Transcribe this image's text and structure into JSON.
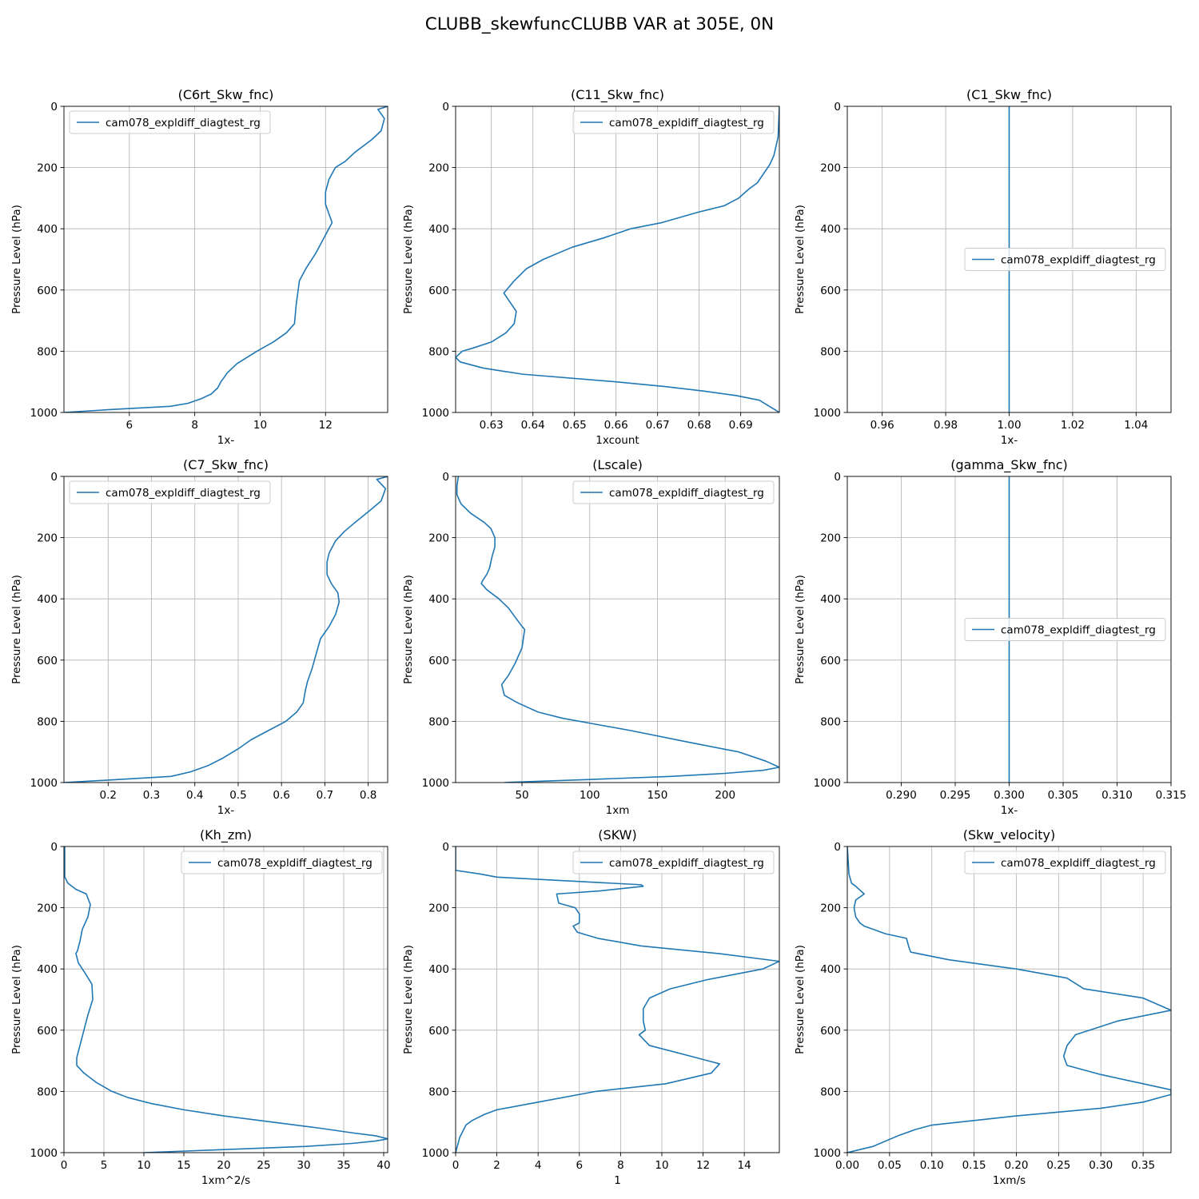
{
  "figure_title": "CLUBB_skewfuncCLUBB VAR at 305E, 0N",
  "chart_data": [
    {
      "type": "line",
      "title": "(C6rt_Skw_fnc)",
      "xlabel": "1x-",
      "ylabel": "Pressure Level (hPa)",
      "xlim": [
        4.0,
        13.9
      ],
      "ylim": [
        1000,
        0
      ],
      "xticks": [
        6,
        8,
        10,
        12
      ],
      "xtick_labels": [
        "6",
        "8",
        "10",
        "12"
      ],
      "yticks": [
        0,
        200,
        400,
        600,
        800,
        1000
      ],
      "ytick_labels": [
        "0",
        "200",
        "400",
        "600",
        "800",
        "1000"
      ],
      "legend": "upper left",
      "series": [
        {
          "name": "cam078_expldiff_diagtest_rg",
          "color": "#1f77b4",
          "x": [
            13.9,
            13.6,
            13.8,
            13.7,
            13.4,
            12.9,
            12.6,
            12.3,
            12.1,
            12.0,
            12.0,
            12.1,
            12.2,
            12.0,
            11.7,
            11.4,
            11.2,
            11.1,
            11.05,
            10.8,
            10.4,
            9.9,
            9.3,
            9.0,
            8.8,
            8.7,
            8.5,
            8.2,
            7.8,
            7.25,
            5.5,
            4.0
          ],
          "y": [
            0,
            10,
            40,
            80,
            110,
            150,
            180,
            200,
            240,
            280,
            320,
            350,
            380,
            420,
            480,
            530,
            570,
            650,
            710,
            740,
            770,
            800,
            840,
            870,
            900,
            920,
            940,
            955,
            970,
            980,
            990,
            1000
          ]
        }
      ]
    },
    {
      "type": "line",
      "title": "(C11_Skw_fnc)",
      "xlabel": "1xcount",
      "ylabel": "Pressure Level (hPa)",
      "xlim": [
        0.6214,
        0.6993
      ],
      "ylim": [
        1000,
        0
      ],
      "xticks": [
        0.63,
        0.64,
        0.65,
        0.66,
        0.67,
        0.68,
        0.69
      ],
      "xtick_labels": [
        "0.63",
        "0.64",
        "0.65",
        "0.66",
        "0.67",
        "0.68",
        "0.69"
      ],
      "yticks": [
        0,
        200,
        400,
        600,
        800,
        1000
      ],
      "ytick_labels": [
        "0",
        "200",
        "400",
        "600",
        "800",
        "1000"
      ],
      "legend": "upper right",
      "series": [
        {
          "name": "cam078_expldiff_diagtest_rg",
          "color": "#1f77b4",
          "x": [
            0.6993,
            0.699,
            0.6985,
            0.698,
            0.697,
            0.6955,
            0.694,
            0.692,
            0.6895,
            0.686,
            0.68,
            0.671,
            0.6635,
            0.657,
            0.6495,
            0.6425,
            0.6385,
            0.6355,
            0.633,
            0.6345,
            0.636,
            0.6355,
            0.6335,
            0.63,
            0.6255,
            0.623,
            0.6214,
            0.6225,
            0.628,
            0.6375,
            0.66,
            0.6715,
            0.681,
            0.689,
            0.6945,
            0.6993
          ],
          "y": [
            0,
            100,
            130,
            160,
            190,
            220,
            250,
            270,
            300,
            325,
            345,
            380,
            400,
            430,
            460,
            500,
            530,
            570,
            610,
            640,
            670,
            710,
            740,
            770,
            790,
            800,
            820,
            835,
            855,
            875,
            900,
            915,
            930,
            945,
            960,
            1000
          ]
        }
      ]
    },
    {
      "type": "line",
      "title": "(C1_Skw_fnc)",
      "xlabel": "1x-",
      "ylabel": "Pressure Level (hPa)",
      "xlim": [
        0.949,
        1.051
      ],
      "ylim": [
        1000,
        0
      ],
      "xticks": [
        0.96,
        0.98,
        1.0,
        1.02,
        1.04
      ],
      "xtick_labels": [
        "0.96",
        "0.98",
        "1.00",
        "1.02",
        "1.04"
      ],
      "yticks": [
        0,
        200,
        400,
        600,
        800,
        1000
      ],
      "ytick_labels": [
        "0",
        "200",
        "400",
        "600",
        "800",
        "1000"
      ],
      "legend": "center right",
      "series": [
        {
          "name": "cam078_expldiff_diagtest_rg",
          "color": "#1f77b4",
          "x": [
            1.0,
            1.0
          ],
          "y": [
            0,
            1000
          ]
        }
      ]
    },
    {
      "type": "line",
      "title": "(C7_Skw_fnc)",
      "xlabel": "1x-",
      "ylabel": "Pressure Level (hPa)",
      "xlim": [
        0.098,
        0.845
      ],
      "ylim": [
        1000,
        0
      ],
      "xticks": [
        0.2,
        0.3,
        0.4,
        0.5,
        0.6,
        0.7,
        0.8
      ],
      "xtick_labels": [
        "0.2",
        "0.3",
        "0.4",
        "0.5",
        "0.6",
        "0.7",
        "0.8"
      ],
      "yticks": [
        0,
        200,
        400,
        600,
        800,
        1000
      ],
      "ytick_labels": [
        "0",
        "200",
        "400",
        "600",
        "800",
        "1000"
      ],
      "legend": "upper left",
      "series": [
        {
          "name": "cam078_expldiff_diagtest_rg",
          "color": "#1f77b4",
          "x": [
            0.845,
            0.82,
            0.84,
            0.83,
            0.805,
            0.77,
            0.745,
            0.725,
            0.71,
            0.705,
            0.705,
            0.715,
            0.73,
            0.733,
            0.725,
            0.71,
            0.69,
            0.68,
            0.67,
            0.66,
            0.655,
            0.65,
            0.635,
            0.61,
            0.57,
            0.53,
            0.5,
            0.465,
            0.43,
            0.39,
            0.345,
            0.2,
            0.098
          ],
          "y": [
            0,
            10,
            40,
            80,
            110,
            150,
            180,
            210,
            250,
            280,
            320,
            350,
            380,
            410,
            450,
            490,
            530,
            580,
            630,
            670,
            700,
            740,
            770,
            800,
            830,
            860,
            890,
            920,
            945,
            965,
            980,
            992,
            1000
          ]
        }
      ]
    },
    {
      "type": "line",
      "title": "(Lscale)",
      "xlabel": "1xm",
      "ylabel": "Pressure Level (hPa)",
      "xlim": [
        1.0,
        240.0
      ],
      "ylim": [
        1000,
        0
      ],
      "xticks": [
        50,
        100,
        150,
        200
      ],
      "xtick_labels": [
        "50",
        "100",
        "150",
        "200"
      ],
      "yticks": [
        0,
        200,
        400,
        600,
        800,
        1000
      ],
      "ytick_labels": [
        "0",
        "200",
        "400",
        "600",
        "800",
        "1000"
      ],
      "legend": "upper right",
      "series": [
        {
          "name": "cam078_expldiff_diagtest_rg",
          "color": "#1f77b4",
          "x": [
            3,
            2,
            2,
            5,
            12,
            22,
            27,
            30,
            30,
            28,
            26,
            24,
            21,
            20,
            24,
            33,
            40,
            45,
            50,
            52,
            50,
            45,
            40,
            35,
            37,
            47,
            62,
            80,
            105,
            130,
            175,
            210,
            230,
            240,
            228,
            200,
            160,
            100,
            37
          ],
          "y": [
            0,
            30,
            60,
            90,
            120,
            150,
            170,
            200,
            230,
            260,
            300,
            320,
            340,
            350,
            370,
            400,
            430,
            460,
            490,
            500,
            560,
            610,
            650,
            680,
            715,
            740,
            770,
            790,
            810,
            830,
            870,
            900,
            930,
            950,
            960,
            970,
            980,
            990,
            1000
          ]
        }
      ]
    },
    {
      "type": "line",
      "title": "(gamma_Skw_fnc)",
      "xlabel": "1x-",
      "ylabel": "Pressure Level (hPa)",
      "xlim": [
        0.285,
        0.315
      ],
      "ylim": [
        1000,
        0
      ],
      "xticks": [
        0.29,
        0.295,
        0.3,
        0.305,
        0.31,
        0.315
      ],
      "xtick_labels": [
        "0.290",
        "0.295",
        "0.300",
        "0.305",
        "0.310",
        "0.315"
      ],
      "yticks": [
        0,
        200,
        400,
        600,
        800,
        1000
      ],
      "ytick_labels": [
        "0",
        "200",
        "400",
        "600",
        "800",
        "1000"
      ],
      "legend": "center right",
      "series": [
        {
          "name": "cam078_expldiff_diagtest_rg",
          "color": "#1f77b4",
          "x": [
            0.3,
            0.3
          ],
          "y": [
            0,
            1000
          ]
        }
      ]
    },
    {
      "type": "line",
      "title": "(Kh_zm)",
      "xlabel": "1xm^2/s",
      "ylabel": "Pressure Level (hPa)",
      "xlim": [
        0,
        40.5
      ],
      "ylim": [
        1000,
        0
      ],
      "xticks": [
        0,
        5,
        10,
        15,
        20,
        25,
        30,
        35,
        40
      ],
      "xtick_labels": [
        "0",
        "5",
        "10",
        "15",
        "20",
        "25",
        "30",
        "35",
        "40"
      ],
      "yticks": [
        0,
        200,
        400,
        600,
        800,
        1000
      ],
      "ytick_labels": [
        "0",
        "200",
        "400",
        "600",
        "800",
        "1000"
      ],
      "legend": "upper right",
      "series": [
        {
          "name": "cam078_expldiff_diagtest_rg",
          "color": "#1f77b4",
          "x": [
            0.1,
            0.1,
            0.5,
            1.5,
            2.8,
            3.3,
            3.0,
            2.3,
            2.0,
            1.7,
            1.5,
            1.8,
            2.8,
            3.5,
            3.6,
            3.0,
            2.5,
            2.0,
            1.6,
            1.6,
            2.5,
            4.0,
            6.0,
            8.0,
            11.0,
            15.0,
            20.0,
            26.0,
            32.0,
            36.0,
            39.0,
            40.5,
            39.0,
            36.0,
            30.0,
            20.0,
            10.0
          ],
          "y": [
            0,
            100,
            120,
            140,
            155,
            190,
            230,
            270,
            310,
            340,
            350,
            380,
            420,
            450,
            500,
            550,
            600,
            650,
            690,
            715,
            740,
            770,
            800,
            820,
            840,
            860,
            880,
            900,
            920,
            935,
            945,
            955,
            962,
            970,
            980,
            990,
            1000
          ]
        }
      ]
    },
    {
      "type": "line",
      "title": "(SKW)",
      "xlabel": "1",
      "ylabel": "Pressure Level (hPa)",
      "xlim": [
        0,
        15.7
      ],
      "ylim": [
        1000,
        0
      ],
      "xticks": [
        0,
        2,
        4,
        6,
        8,
        10,
        12,
        14
      ],
      "xtick_labels": [
        "0",
        "2",
        "4",
        "6",
        "8",
        "10",
        "12",
        "14"
      ],
      "yticks": [
        0,
        200,
        400,
        600,
        800,
        1000
      ],
      "ytick_labels": [
        "0",
        "200",
        "400",
        "600",
        "800",
        "1000"
      ],
      "legend": "upper right",
      "series": [
        {
          "name": "cam078_expldiff_diagtest_rg",
          "color": "#1f77b4",
          "x": [
            0.0,
            0.0,
            1.2,
            2.0,
            9.0,
            9.1,
            7.0,
            4.9,
            5.0,
            5.8,
            6.0,
            6.0,
            5.7,
            5.9,
            6.9,
            9.0,
            12.8,
            15.7,
            14.9,
            12.2,
            10.4,
            9.4,
            9.1,
            9.1,
            9.2,
            8.9,
            9.4,
            11.4,
            12.8,
            12.4,
            10.2,
            6.8,
            4.0,
            2.0,
            1.4,
            0.8,
            0.5,
            0.2,
            0.0
          ],
          "y": [
            0,
            78,
            90,
            100,
            125,
            130,
            145,
            155,
            185,
            200,
            220,
            250,
            260,
            280,
            300,
            325,
            350,
            375,
            400,
            435,
            465,
            495,
            530,
            570,
            600,
            615,
            650,
            685,
            710,
            740,
            775,
            800,
            835,
            860,
            875,
            895,
            910,
            950,
            1000
          ]
        }
      ]
    },
    {
      "type": "line",
      "title": "(Skw_velocity)",
      "xlabel": "1xm/s",
      "ylabel": "Pressure Level (hPa)",
      "xlim": [
        0,
        0.383
      ],
      "ylim": [
        1000,
        0
      ],
      "xticks": [
        0.0,
        0.05,
        0.1,
        0.15,
        0.2,
        0.25,
        0.3,
        0.35
      ],
      "xtick_labels": [
        "0.00",
        "0.05",
        "0.10",
        "0.15",
        "0.20",
        "0.25",
        "0.30",
        "0.35"
      ],
      "yticks": [
        0,
        200,
        400,
        600,
        800,
        1000
      ],
      "ytick_labels": [
        "0",
        "200",
        "400",
        "600",
        "800",
        "1000"
      ],
      "legend": "upper right",
      "series": [
        {
          "name": "cam078_expldiff_diagtest_rg",
          "color": "#1f77b4",
          "x": [
            0.0,
            0.002,
            0.005,
            0.01,
            0.02,
            0.01,
            0.008,
            0.01,
            0.015,
            0.02,
            0.03,
            0.045,
            0.07,
            0.073,
            0.075,
            0.12,
            0.2,
            0.26,
            0.28,
            0.35,
            0.383,
            0.32,
            0.27,
            0.26,
            0.256,
            0.26,
            0.3,
            0.35,
            0.383,
            0.383,
            0.35,
            0.3,
            0.2,
            0.15,
            0.1,
            0.08,
            0.06,
            0.03,
            0.0
          ],
          "y": [
            0,
            90,
            120,
            130,
            155,
            175,
            200,
            230,
            250,
            260,
            270,
            285,
            300,
            330,
            345,
            370,
            400,
            430,
            465,
            495,
            535,
            570,
            615,
            650,
            685,
            715,
            745,
            775,
            795,
            810,
            835,
            855,
            880,
            895,
            910,
            925,
            945,
            980,
            1000
          ]
        }
      ]
    }
  ]
}
